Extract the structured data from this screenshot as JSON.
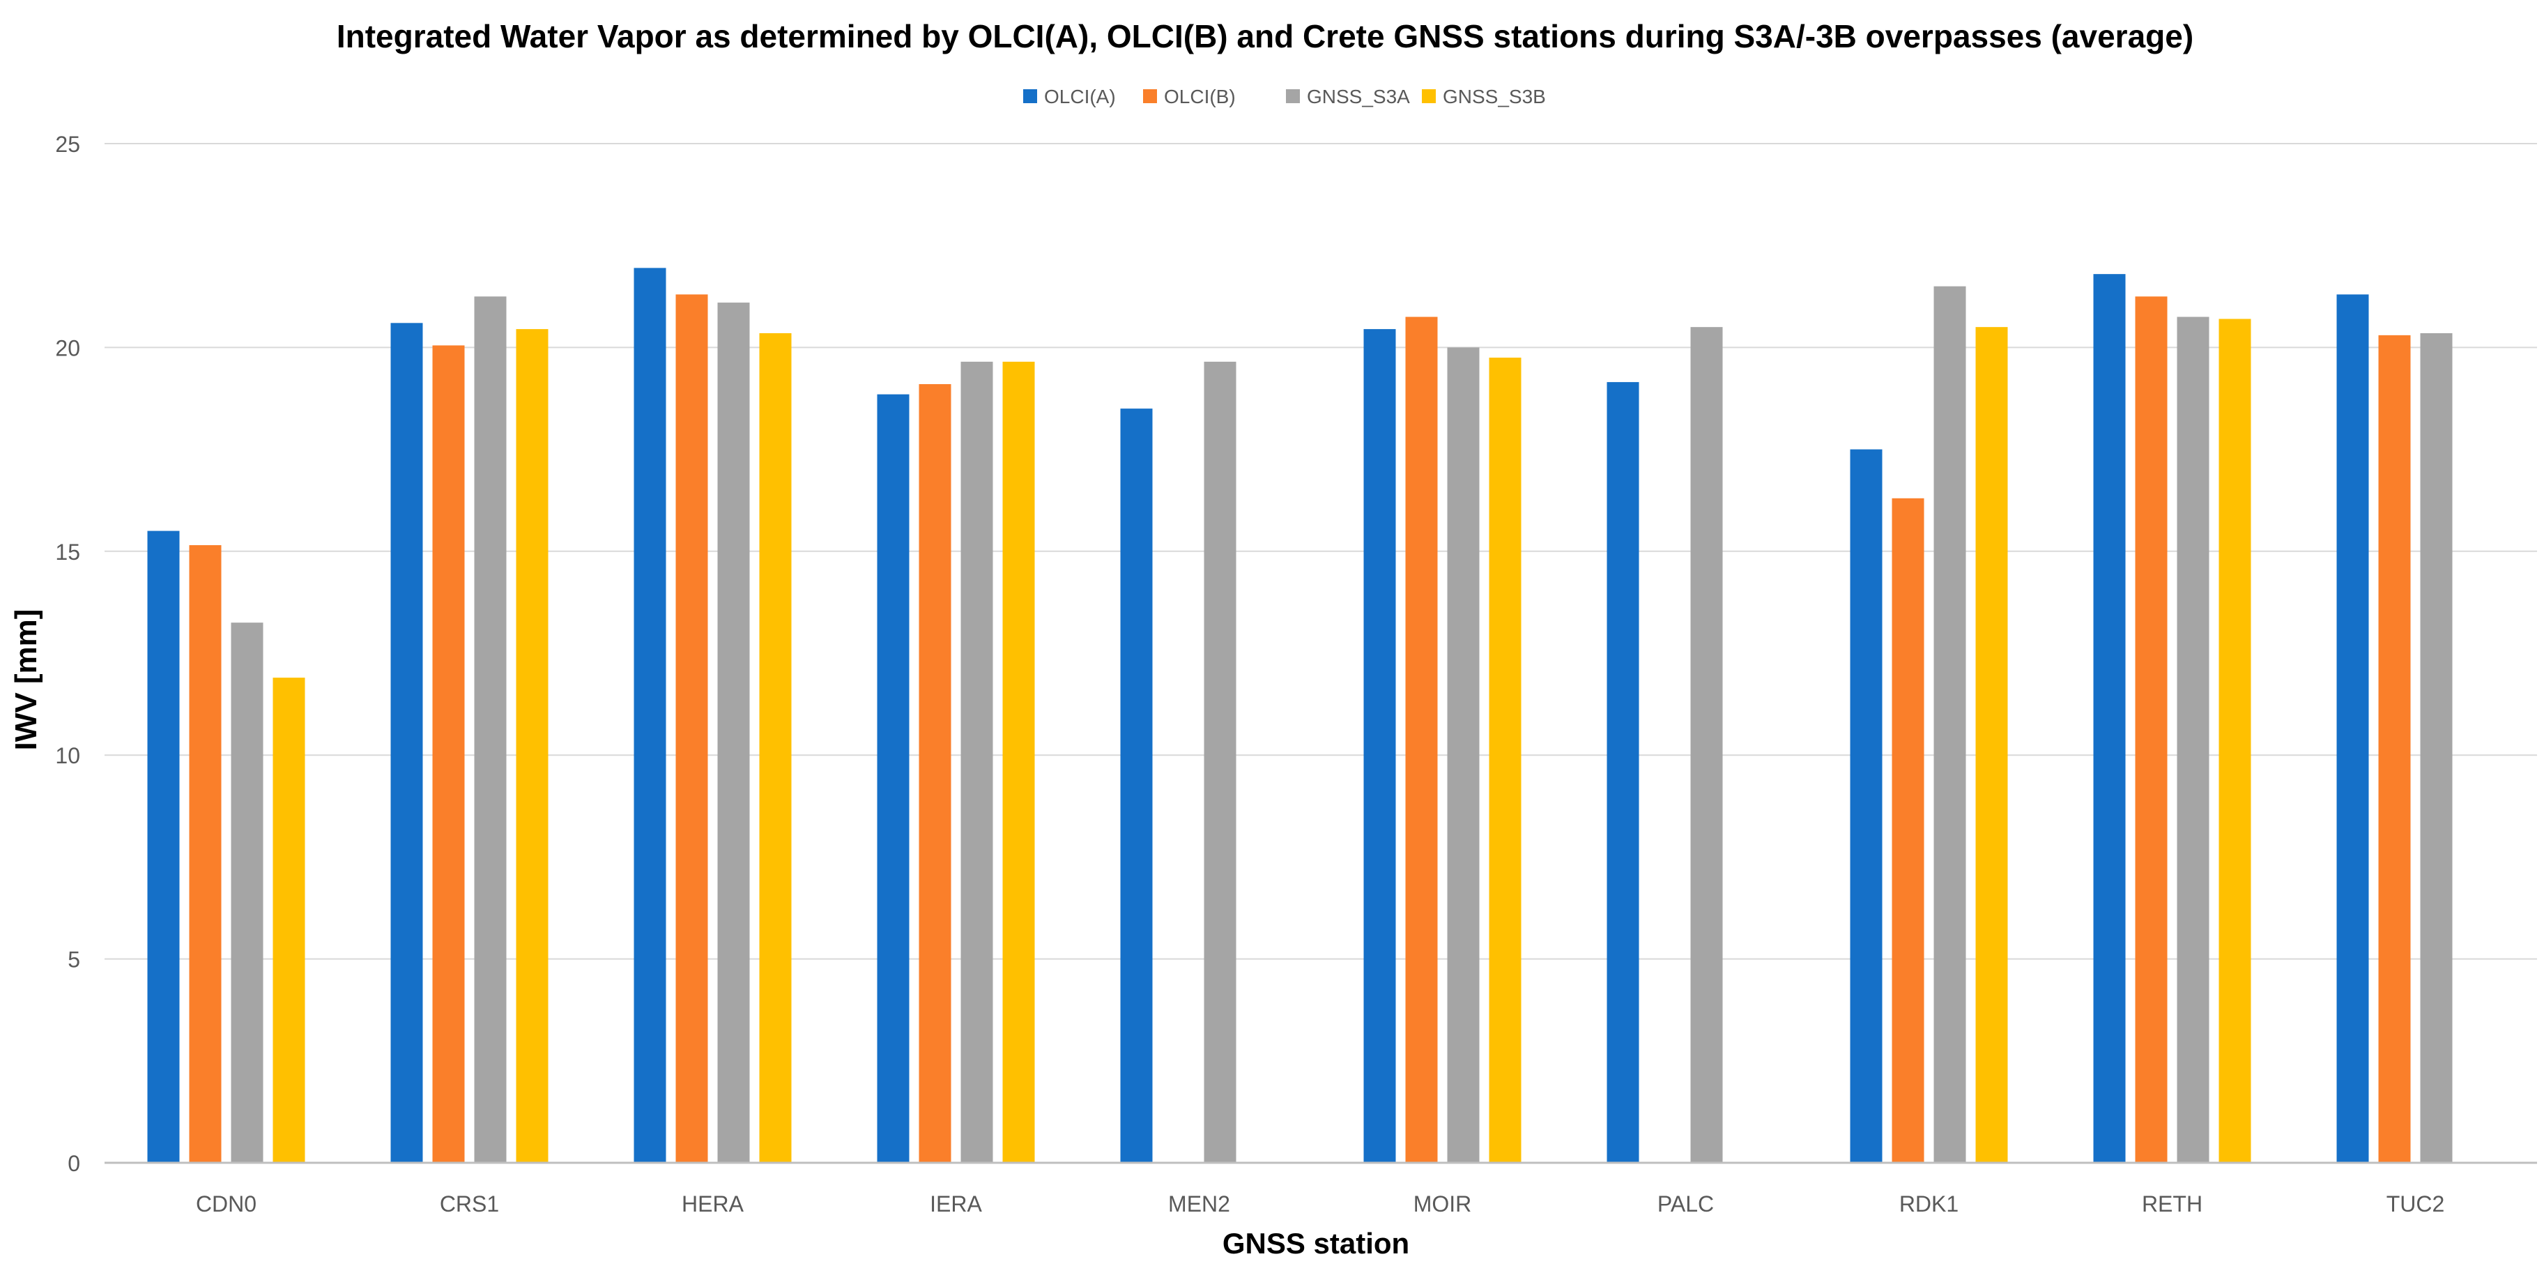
{
  "chart_data": {
    "type": "bar",
    "title": "Integrated Water Vapor as determined by OLCI(A), OLCI(B) and Crete GNSS stations during S3A/-3B overpasses (average)",
    "xlabel": "GNSS station",
    "ylabel": "IWV [mm]",
    "ylim": [
      0,
      25
    ],
    "yticks": [
      0,
      5,
      10,
      15,
      20,
      25
    ],
    "grid": true,
    "legend_position": "top-center",
    "categories": [
      "CDN0",
      "CRS1",
      "HERA",
      "IERA",
      "MEN2",
      "MOIR",
      "PALC",
      "RDK1",
      "RETH",
      "TUC2"
    ],
    "series": [
      {
        "name": "OLCI(A)",
        "color": "#1570c8",
        "values": [
          15.5,
          20.6,
          21.95,
          18.85,
          18.5,
          20.45,
          19.15,
          17.5,
          21.8,
          21.3
        ]
      },
      {
        "name": "OLCI(B)",
        "color": "#fa7f2a",
        "values": [
          15.15,
          20.05,
          21.3,
          19.1,
          null,
          20.75,
          null,
          16.3,
          21.25,
          20.3
        ]
      },
      {
        "name": "GNSS_S3A",
        "color": "#a5a5a5",
        "values": [
          13.25,
          21.25,
          21.1,
          19.65,
          19.65,
          20.0,
          20.5,
          21.5,
          20.75,
          20.35
        ]
      },
      {
        "name": "GNSS_S3B",
        "color": "#ffc000",
        "values": [
          11.9,
          20.45,
          20.35,
          19.65,
          null,
          19.75,
          null,
          20.5,
          20.7,
          null
        ]
      }
    ]
  }
}
